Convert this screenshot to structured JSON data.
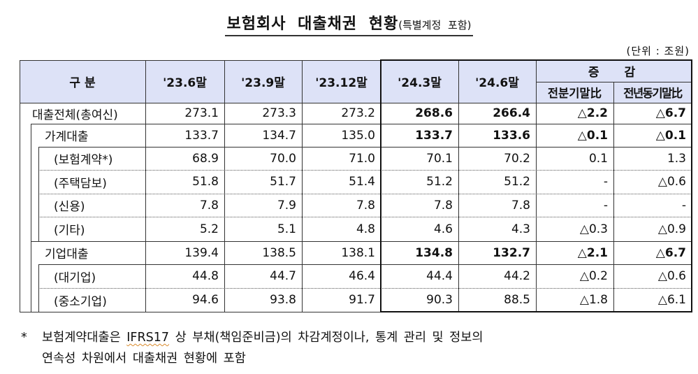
{
  "title": {
    "main": "보험회사 대출채권 현황",
    "sub": "(특별계정 포함)"
  },
  "unit_label": "(단위 : 조원)",
  "table": {
    "header": {
      "category": "구 분",
      "periods": [
        "'23.6말",
        "'23.9말",
        "'23.12말",
        "'24.3말",
        "'24.6말"
      ],
      "change_group": "증 감",
      "change_cols": [
        "전분기말比",
        "전년동기말比"
      ]
    },
    "rows": [
      {
        "label": "대출전체(총여신)",
        "level": 0,
        "bold_recent": true,
        "values": [
          "273.1",
          "273.3",
          "273.2",
          "268.6",
          "266.4",
          "△2.2",
          "△6.7"
        ]
      },
      {
        "label": "가계대출",
        "level": 1,
        "bold_recent": true,
        "values": [
          "133.7",
          "134.7",
          "135.0",
          "133.7",
          "133.6",
          "△0.1",
          "△0.1"
        ]
      },
      {
        "label": "(보험계약*)",
        "level": 2,
        "bold_recent": false,
        "values": [
          "68.9",
          "70.0",
          "71.0",
          "70.1",
          "70.2",
          "0.1",
          "1.3"
        ]
      },
      {
        "label": "(주택담보)",
        "level": 2,
        "bold_recent": false,
        "values": [
          "51.8",
          "51.7",
          "51.4",
          "51.2",
          "51.2",
          "-",
          "△0.6"
        ]
      },
      {
        "label": "(신용)",
        "level": 2,
        "bold_recent": false,
        "values": [
          "7.8",
          "7.9",
          "7.8",
          "7.8",
          "7.8",
          "-",
          "-"
        ]
      },
      {
        "label": "(기타)",
        "level": 2,
        "bold_recent": false,
        "values": [
          "5.2",
          "5.1",
          "4.8",
          "4.6",
          "4.3",
          "△0.3",
          "△0.9"
        ]
      },
      {
        "label": "기업대출",
        "level": 1,
        "bold_recent": true,
        "values": [
          "139.4",
          "138.5",
          "138.1",
          "134.8",
          "132.7",
          "△2.1",
          "△6.7"
        ]
      },
      {
        "label": "(대기업)",
        "level": 2,
        "bold_recent": false,
        "values": [
          "44.8",
          "44.7",
          "46.4",
          "44.4",
          "44.2",
          "△0.2",
          "△0.6"
        ]
      },
      {
        "label": "(중소기업)",
        "level": 2,
        "bold_recent": false,
        "values": [
          "94.6",
          "93.8",
          "91.7",
          "90.3",
          "88.5",
          "△1.8",
          "△6.1"
        ]
      }
    ]
  },
  "footnote": {
    "marker": "*",
    "line1_pre": "보험계약대출은 ",
    "line1_term": "IFRS17",
    "line1_post": " 상 부채(책임준비금)의 차감계정이나, 통계 관리 및 정보의",
    "line2": "연속성 차원에서 대출채권 현황에 포함"
  },
  "colors": {
    "header_bg": "#dde2f7",
    "border": "#333333"
  }
}
